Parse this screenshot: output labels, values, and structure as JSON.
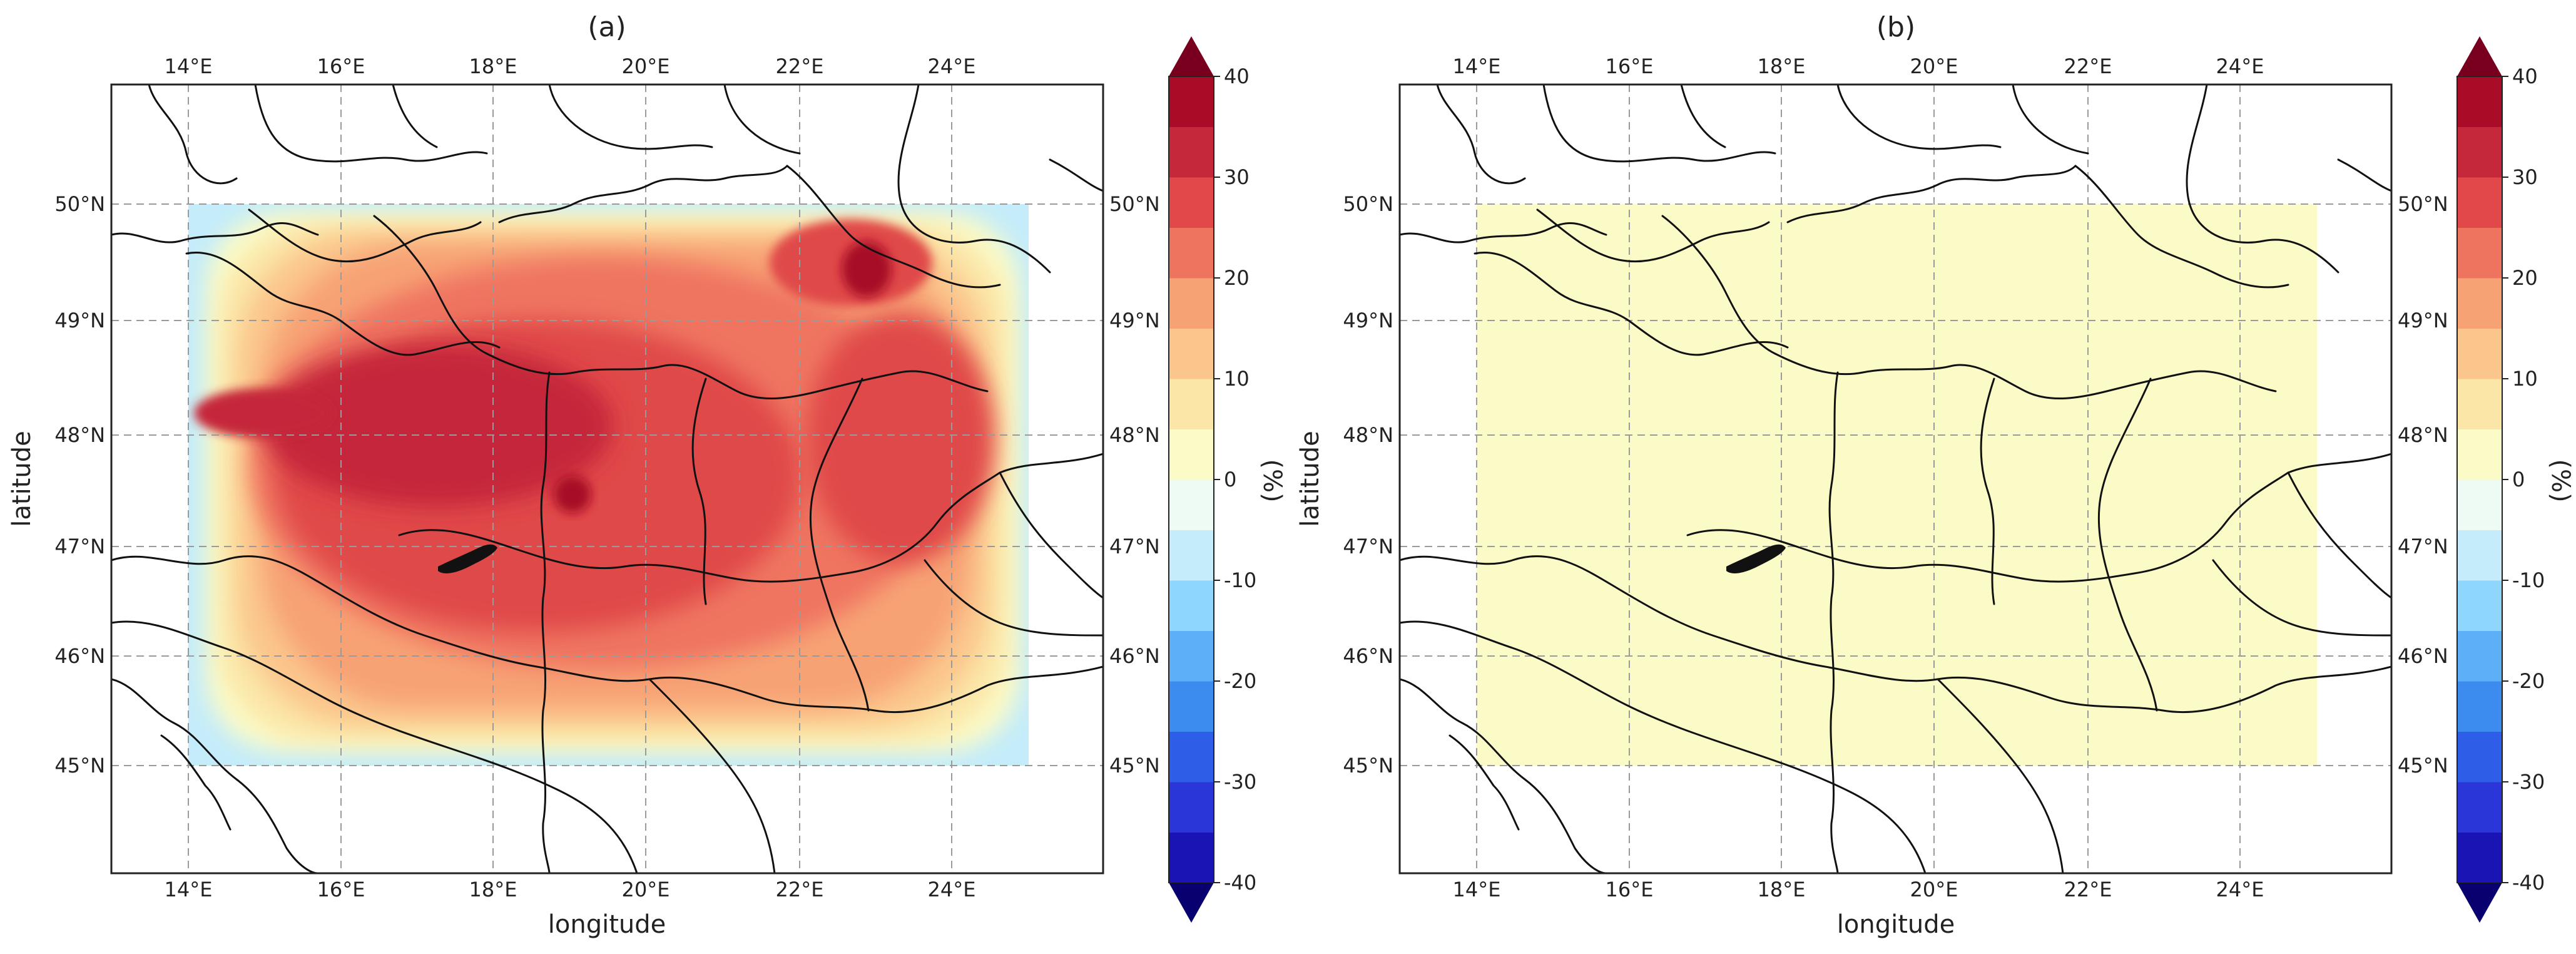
{
  "figure": {
    "panels": [
      {
        "id": "a",
        "title": "(a)",
        "xlabel": "longitude",
        "ylabel": "latitude",
        "lon_ticks": [
          "14°E",
          "16°E",
          "18°E",
          "20°E",
          "22°E",
          "24°E"
        ],
        "lat_ticks": [
          "45°N",
          "46°N",
          "47°N",
          "48°N",
          "49°N",
          "50°N"
        ],
        "colorbar_unit": "(%)",
        "colorbar_ticks": [
          "-40",
          "-30",
          "-20",
          "-10",
          "0",
          "10",
          "20",
          "30",
          "40"
        ],
        "field_description": "relative change, strongly positive (+20 to +40 %) over the Carpathian basin, weakly negative near western and southern edges"
      },
      {
        "id": "b",
        "title": "(b)",
        "xlabel": "longitude",
        "ylabel": "latitude",
        "lon_ticks": [
          "14°E",
          "16°E",
          "18°E",
          "20°E",
          "22°E",
          "24°E"
        ],
        "lat_ticks": [
          "45°N",
          "46°N",
          "47°N",
          "48°N",
          "49°N",
          "50°N"
        ],
        "colorbar_unit": "(%)",
        "colorbar_ticks": [
          "-40",
          "-30",
          "-20",
          "-10",
          "0",
          "10",
          "20",
          "30",
          "40"
        ],
        "field_description": "relative change near 0 to +5 % over the whole domain"
      }
    ]
  },
  "chart_data": [
    {
      "type": "heatmap",
      "title": "(a)",
      "xlabel": "longitude",
      "ylabel": "latitude",
      "xlim": [
        13,
        26
      ],
      "ylim": [
        44,
        51
      ],
      "domain": {
        "lon": [
          14,
          25
        ],
        "lat": [
          45,
          50
        ]
      },
      "colorbar": {
        "unit": "(%)",
        "min": -40,
        "max": 40,
        "step": 5,
        "extend": "both",
        "colormap": "RdYlBu_r"
      },
      "grid": true,
      "summary_values": {
        "domain_core": 30,
        "max": 40,
        "edges_min": -10
      }
    },
    {
      "type": "heatmap",
      "title": "(b)",
      "xlabel": "longitude",
      "ylabel": "latitude",
      "xlim": [
        13,
        26
      ],
      "ylim": [
        44,
        51
      ],
      "domain": {
        "lon": [
          14,
          25
        ],
        "lat": [
          45,
          50
        ]
      },
      "colorbar": {
        "unit": "(%)",
        "min": -40,
        "max": 40,
        "step": 5,
        "extend": "both",
        "colormap": "RdYlBu_r"
      },
      "grid": true,
      "summary_values": {
        "domain_core": 2.5,
        "max": 5,
        "edges_min": 0
      }
    }
  ],
  "colors": {
    "levels": [
      "#08006e",
      "#1a14b4",
      "#2a36d8",
      "#2e5ee8",
      "#3c8cf0",
      "#5eb0f6",
      "#8ed6fb",
      "#c4ecfa",
      "#eefaf4",
      "#fbfbc8",
      "#fbe6a8",
      "#fbc68c",
      "#f7a274",
      "#ef7460",
      "#e0484a",
      "#c5283a",
      "#a80c26",
      "#78001e"
    ]
  }
}
